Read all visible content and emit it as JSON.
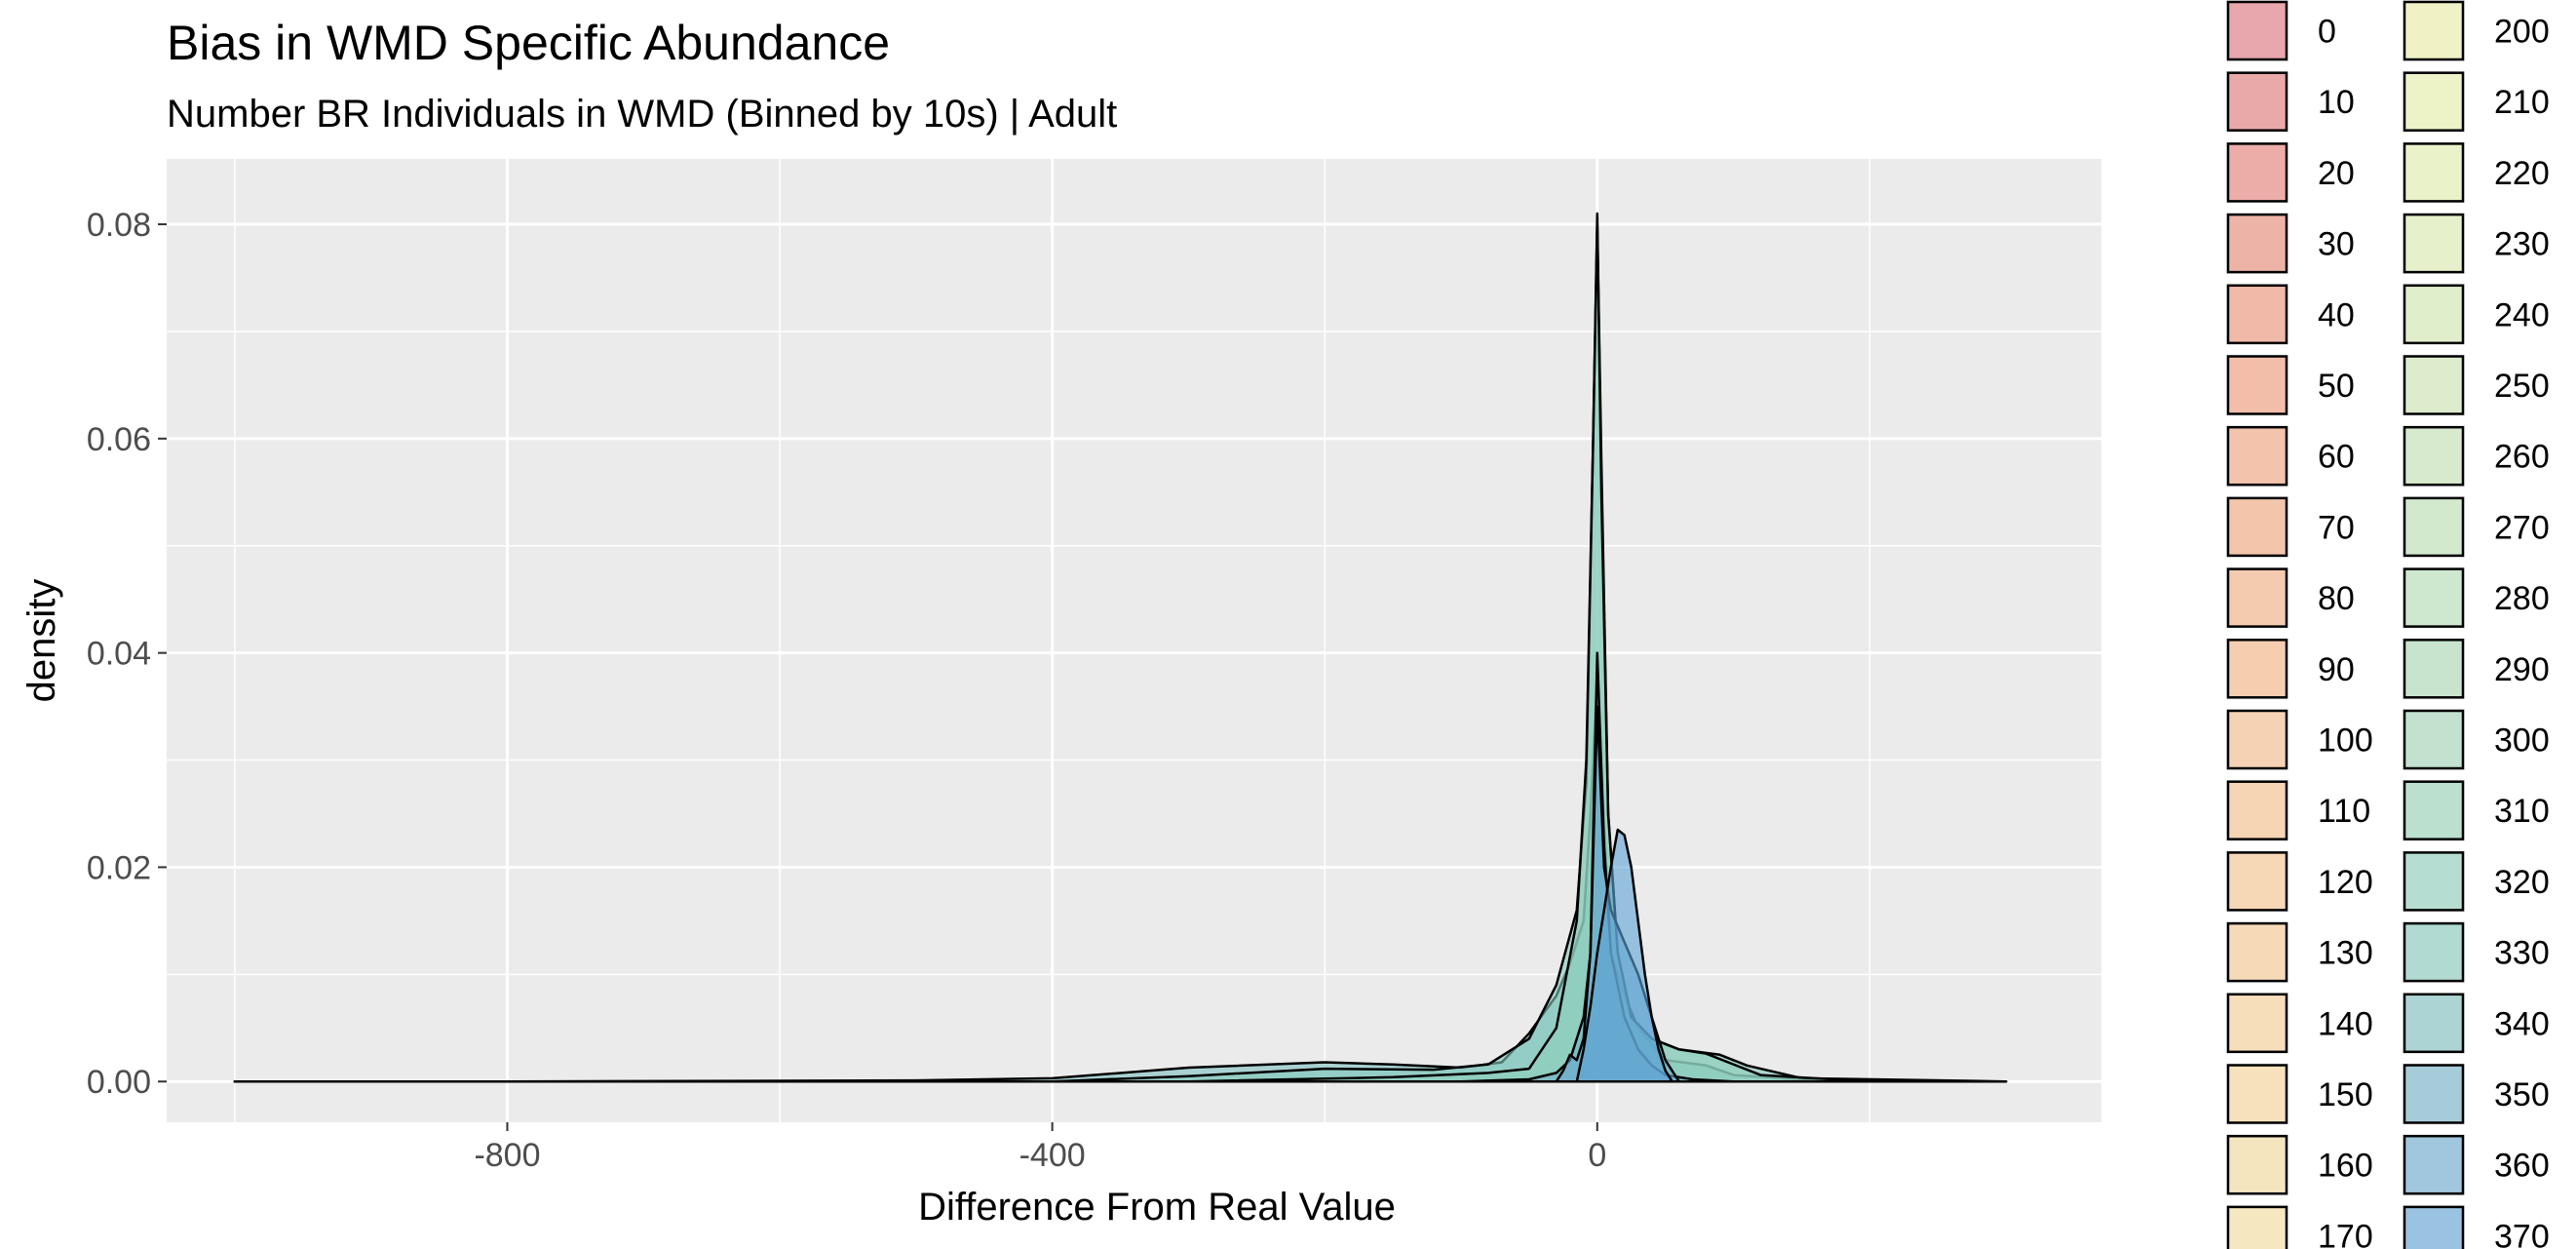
{
  "chart_data": {
    "type": "area",
    "title": "Bias in WMD Specific Abundance",
    "subtitle": "Number BR Individuals in WMD (Binned by 10s) | Adult",
    "xlabel": "Difference From Real Value",
    "ylabel": "density",
    "xlim": [
      -1050,
      370
    ],
    "ylim": [
      -0.0038,
      0.0861
    ],
    "x_ticks": [
      -800,
      -400,
      0
    ],
    "y_ticks": [
      0.0,
      0.02,
      0.04,
      0.06,
      0.08
    ],
    "x_tick_labels": [
      "-800",
      "-400",
      "0"
    ],
    "y_tick_labels": [
      "0.00",
      "0.02",
      "0.04",
      "0.06",
      "0.08"
    ],
    "grid": true,
    "legend": {
      "placement": "right",
      "columns": 2,
      "entries": [
        "0",
        "10",
        "20",
        "30",
        "40",
        "50",
        "60",
        "70",
        "80",
        "90",
        "100",
        "110",
        "120",
        "130",
        "140",
        "150",
        "160",
        "170",
        "200",
        "210",
        "220",
        "230",
        "240",
        "250",
        "260",
        "270",
        "280",
        "290",
        "300",
        "310",
        "320",
        "330",
        "340",
        "350",
        "360",
        "370"
      ],
      "colors": [
        "#e1737e",
        "#e37878",
        "#e77f76",
        "#ea8875",
        "#ee9276",
        "#f19a78",
        "#f3a37b",
        "#f4a97d",
        "#f5b080",
        "#f6b684",
        "#f7bd88",
        "#f7c28b",
        "#f8c68e",
        "#f8ca91",
        "#f8d094",
        "#f8d698",
        "#f7dc9c",
        "#f7e09e",
        "#eff2a9",
        "#ebf2aa",
        "#e5f1ad",
        "#ddefb0",
        "#d5ebb1",
        "#cde8b2",
        "#c6e5b4",
        "#bee3b6",
        "#b5dfb7",
        "#abdbb8",
        "#a1d7b8",
        "#96d3b9",
        "#8dcfba",
        "#85cabc",
        "#7fc0c1",
        "#74b3c8",
        "#6aaad0",
        "#5ea3d3"
      ]
    },
    "series": [
      {
        "name": "340",
        "x": [
          -1000,
          -800,
          -500,
          -400,
          -300,
          -200,
          -150,
          -100,
          -70,
          -50,
          -30,
          -20,
          -10,
          -5,
          0,
          5,
          10,
          20,
          30,
          40,
          50,
          80,
          100,
          150,
          200,
          300
        ],
        "y": [
          0,
          0,
          0.0001,
          0.0003,
          0.0013,
          0.0018,
          0.0016,
          0.0013,
          0.0018,
          0.0045,
          0.008,
          0.011,
          0.015,
          0.025,
          0.038,
          0.024,
          0.012,
          0.008,
          0.005,
          0.0035,
          0.002,
          0.0015,
          0.0006,
          0.0002,
          0,
          0
        ]
      },
      {
        "name": "330",
        "x": [
          -1000,
          -400,
          -300,
          -200,
          -120,
          -80,
          -50,
          -30,
          -15,
          -8,
          -3,
          0,
          3,
          8,
          15,
          25,
          40,
          60,
          90,
          110,
          150,
          300
        ],
        "y": [
          0,
          0,
          0.0005,
          0.0012,
          0.0011,
          0.0016,
          0.004,
          0.009,
          0.016,
          0.028,
          0.06,
          0.08,
          0.058,
          0.025,
          0.012,
          0.006,
          0.004,
          0.003,
          0.0025,
          0.0015,
          0.0003,
          0
        ]
      },
      {
        "name": "320",
        "x": [
          -1000,
          -300,
          -150,
          -80,
          -50,
          -30,
          -15,
          -8,
          -3,
          0,
          3,
          8,
          15,
          25,
          40,
          60,
          80,
          120,
          200,
          300
        ],
        "y": [
          0,
          0,
          0.0004,
          0.0008,
          0.0012,
          0.005,
          0.015,
          0.03,
          0.06,
          0.081,
          0.055,
          0.025,
          0.012,
          0.006,
          0.004,
          0.003,
          0.0026,
          0.0006,
          0,
          0
        ]
      },
      {
        "name": "350",
        "x": [
          -1000,
          -100,
          -50,
          -30,
          -20,
          -10,
          -5,
          0,
          5,
          10,
          20,
          30,
          40,
          50,
          70,
          100,
          300
        ],
        "y": [
          0,
          0,
          0.0002,
          0.0008,
          0.002,
          0.006,
          0.012,
          0.04,
          0.022,
          0.012,
          0.006,
          0.003,
          0.0015,
          0.0006,
          0.0002,
          0,
          0
        ]
      },
      {
        "name": "360",
        "x": [
          -1000,
          -50,
          -30,
          -25,
          -20,
          -15,
          -10,
          -5,
          0,
          5,
          10,
          20,
          30,
          40,
          50,
          60,
          300
        ],
        "y": [
          0,
          0,
          0,
          0.001,
          0.0025,
          0.002,
          0.004,
          0.012,
          0.035,
          0.02,
          0.016,
          0.013,
          0.01,
          0.006,
          0.002,
          0,
          0
        ]
      },
      {
        "name": "370",
        "x": [
          -1000,
          -15,
          -10,
          -5,
          0,
          5,
          10,
          15,
          20,
          25,
          30,
          35,
          40,
          45,
          50,
          55,
          300
        ],
        "y": [
          0,
          0,
          0.003,
          0.007,
          0.012,
          0.016,
          0.02,
          0.0235,
          0.023,
          0.02,
          0.015,
          0.01,
          0.006,
          0.003,
          0.001,
          0,
          0
        ]
      }
    ]
  }
}
